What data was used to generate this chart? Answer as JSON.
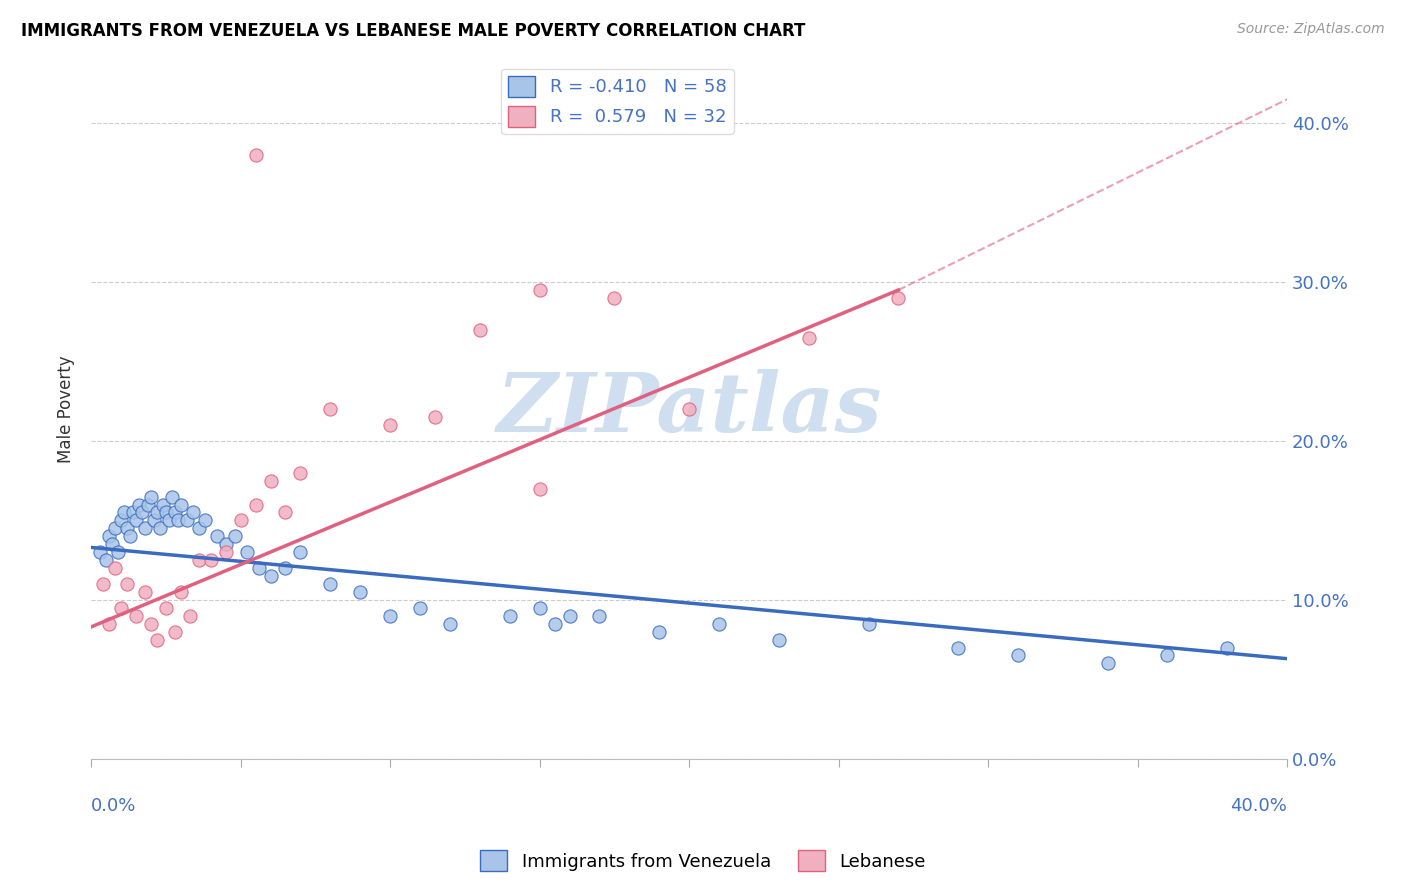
{
  "title": "IMMIGRANTS FROM VENEZUELA VS LEBANESE MALE POVERTY CORRELATION CHART",
  "source": "Source: ZipAtlas.com",
  "ylabel": "Male Poverty",
  "legend_label1": "Immigrants from Venezuela",
  "legend_label2": "Lebanese",
  "R1": -0.41,
  "N1": 58,
  "R2": 0.579,
  "N2": 32,
  "color1": "#a8c4e8",
  "color2": "#f0b0c0",
  "line_color1": "#3a6bbf",
  "line_color2": "#e06080",
  "watermark_text": "ZIPatlas",
  "watermark_color": "#d0dff0",
  "xlim": [
    0.0,
    0.4
  ],
  "ylim": [
    0.0,
    0.44
  ],
  "yticks": [
    0.0,
    0.1,
    0.2,
    0.3,
    0.4
  ],
  "blue_trend": [
    0.0,
    0.133,
    0.4,
    0.063
  ],
  "pink_trend_solid": [
    0.0,
    0.083,
    0.27,
    0.295
  ],
  "pink_trend_dash": [
    0.27,
    0.295,
    0.4,
    0.415
  ],
  "blue_scatter_x": [
    0.003,
    0.005,
    0.006,
    0.007,
    0.008,
    0.009,
    0.01,
    0.011,
    0.012,
    0.013,
    0.014,
    0.015,
    0.016,
    0.017,
    0.018,
    0.019,
    0.02,
    0.021,
    0.022,
    0.023,
    0.024,
    0.025,
    0.026,
    0.027,
    0.028,
    0.029,
    0.03,
    0.032,
    0.034,
    0.036,
    0.038,
    0.042,
    0.045,
    0.048,
    0.052,
    0.056,
    0.06,
    0.065,
    0.07,
    0.08,
    0.09,
    0.1,
    0.11,
    0.12,
    0.14,
    0.155,
    0.17,
    0.19,
    0.21,
    0.23,
    0.26,
    0.29,
    0.31,
    0.34,
    0.36,
    0.38,
    0.15,
    0.16
  ],
  "blue_scatter_y": [
    0.13,
    0.125,
    0.14,
    0.135,
    0.145,
    0.13,
    0.15,
    0.155,
    0.145,
    0.14,
    0.155,
    0.15,
    0.16,
    0.155,
    0.145,
    0.16,
    0.165,
    0.15,
    0.155,
    0.145,
    0.16,
    0.155,
    0.15,
    0.165,
    0.155,
    0.15,
    0.16,
    0.15,
    0.155,
    0.145,
    0.15,
    0.14,
    0.135,
    0.14,
    0.13,
    0.12,
    0.115,
    0.12,
    0.13,
    0.11,
    0.105,
    0.09,
    0.095,
    0.085,
    0.09,
    0.085,
    0.09,
    0.08,
    0.085,
    0.075,
    0.085,
    0.07,
    0.065,
    0.06,
    0.065,
    0.07,
    0.095,
    0.09
  ],
  "pink_scatter_x": [
    0.004,
    0.006,
    0.008,
    0.01,
    0.012,
    0.015,
    0.018,
    0.02,
    0.022,
    0.025,
    0.028,
    0.03,
    0.033,
    0.036,
    0.04,
    0.045,
    0.05,
    0.055,
    0.06,
    0.065,
    0.07,
    0.08,
    0.1,
    0.115,
    0.13,
    0.15,
    0.175,
    0.2,
    0.24,
    0.27,
    0.15,
    0.055
  ],
  "pink_scatter_y": [
    0.11,
    0.085,
    0.12,
    0.095,
    0.11,
    0.09,
    0.105,
    0.085,
    0.075,
    0.095,
    0.08,
    0.105,
    0.09,
    0.125,
    0.125,
    0.13,
    0.15,
    0.16,
    0.175,
    0.155,
    0.18,
    0.22,
    0.21,
    0.215,
    0.27,
    0.295,
    0.29,
    0.22,
    0.265,
    0.29,
    0.17,
    0.38
  ]
}
